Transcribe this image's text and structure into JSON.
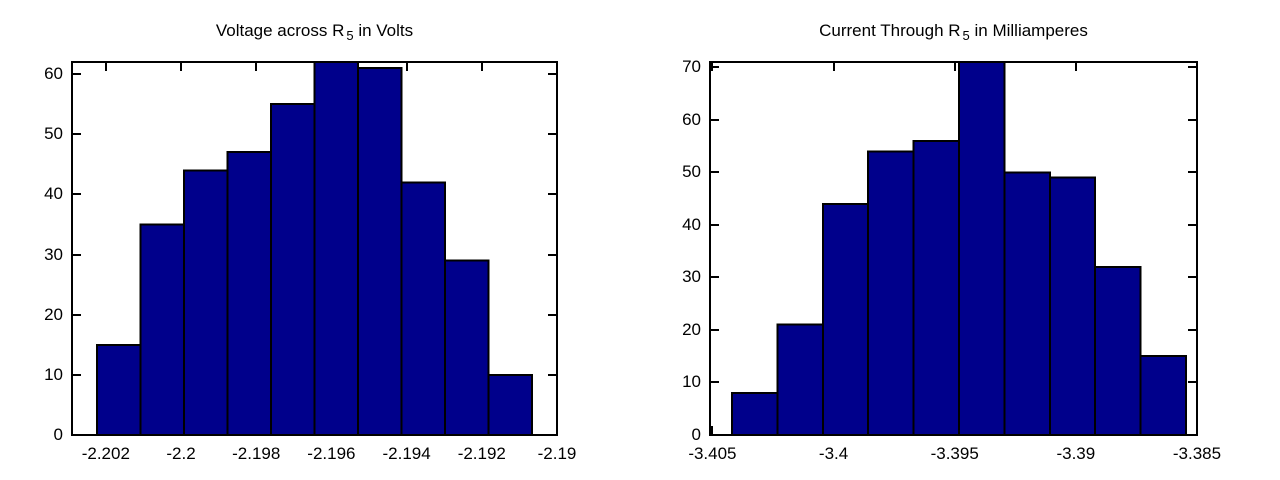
{
  "figure": {
    "background_color": "#ffffff",
    "frame_color": "#000000",
    "text_color": "#000000"
  },
  "chart_data": [
    {
      "type": "bar",
      "subtype": "histogram",
      "title": "Voltage across R_5 in Volts",
      "title_parts": {
        "prefix": "Voltage across R",
        "subscript": "5",
        "suffix": " in Volts"
      },
      "xlabel": "",
      "ylabel": "",
      "bar_color": "#00008b",
      "bar_edge_color": "#000000",
      "grid": false,
      "xlim": [
        -2.2029,
        -2.19
      ],
      "ylim": [
        0,
        62
      ],
      "xticks": [
        -2.202,
        -2.2,
        -2.198,
        -2.196,
        -2.194,
        -2.192,
        -2.19
      ],
      "xtick_labels": [
        "-2.202",
        "-2.2",
        "-2.198",
        "-2.196",
        "-2.194",
        "-2.192",
        "-2.19"
      ],
      "yticks": [
        0,
        10,
        20,
        30,
        40,
        50,
        60
      ],
      "ytick_labels": [
        "0",
        "10",
        "20",
        "30",
        "40",
        "50",
        "60"
      ],
      "bins": {
        "start": -2.20224,
        "width": 0.0011575,
        "count": 10
      },
      "counts": [
        15,
        35,
        44,
        47,
        55,
        62,
        61,
        42,
        29,
        10
      ]
    },
    {
      "type": "bar",
      "subtype": "histogram",
      "title": "Current Through R_5 in Milliamperes",
      "title_parts": {
        "prefix": "Current Through R",
        "subscript": "5",
        "suffix": " in Milliamperes"
      },
      "xlabel": "",
      "ylabel": "",
      "bar_color": "#00008b",
      "bar_edge_color": "#000000",
      "grid": false,
      "xlim": [
        -3.4051,
        -3.385
      ],
      "ylim": [
        0,
        71
      ],
      "xticks": [
        -3.405,
        -3.4,
        -3.395,
        -3.39,
        -3.385
      ],
      "xtick_labels": [
        "-3.405",
        "-3.4",
        "-3.395",
        "-3.39",
        "-3.385"
      ],
      "yticks": [
        0,
        10,
        20,
        30,
        40,
        50,
        60,
        70
      ],
      "ytick_labels": [
        "0",
        "10",
        "20",
        "30",
        "40",
        "50",
        "60",
        "70"
      ],
      "bins": {
        "start": -3.40419,
        "width": 0.0018737,
        "count": 10
      },
      "counts": [
        8,
        21,
        44,
        54,
        56,
        71,
        50,
        49,
        32,
        15
      ]
    }
  ]
}
